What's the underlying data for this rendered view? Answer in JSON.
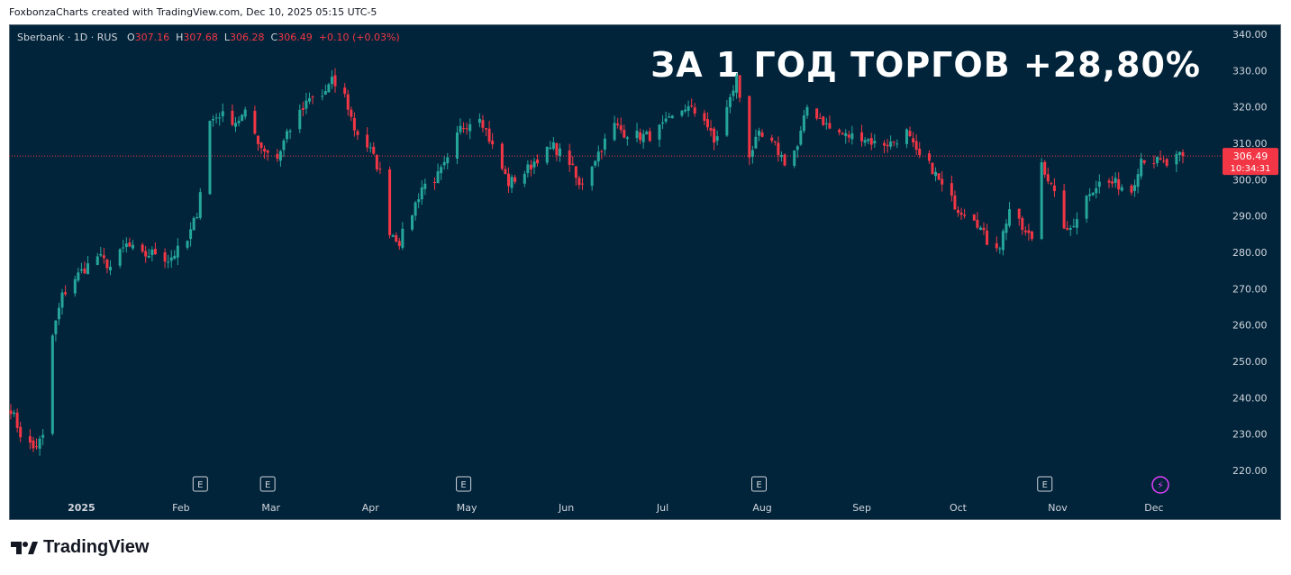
{
  "header": {
    "credit": "FoxbonzaCharts created with TradingView.com, Dec 10, 2025 05:15 UTC-5"
  },
  "legend": {
    "symbol": "Sberbank · 1D · RUS",
    "o_label": "O",
    "o_value": "307.16",
    "h_label": "H",
    "h_value": "307.68",
    "l_label": "L",
    "l_value": "306.28",
    "c_label": "C",
    "c_value": "306.49",
    "change": "+0.10 (+0.03%)"
  },
  "headline": "ЗА 1 ГОД ТОРГОВ +28,80%",
  "price_label": {
    "price": "306.49",
    "countdown": "10:34:31"
  },
  "footer": {
    "brand": "TradingView"
  },
  "colors": {
    "up": "#26a69a",
    "down": "#f23645",
    "background": "#01243a",
    "axis_text": "#d1d4dc"
  },
  "chart_data": {
    "type": "candlestick",
    "y_ticks": [
      "340.00",
      "330.00",
      "320.00",
      "310.00",
      "300.00",
      "290.00",
      "280.00",
      "270.00",
      "260.00",
      "250.00",
      "240.00",
      "230.00",
      "220.00"
    ],
    "ylim": [
      215,
      342
    ],
    "x_ticks": [
      "2025",
      "Feb",
      "Mar",
      "Apr",
      "May",
      "Jun",
      "Jul",
      "Aug",
      "Sep",
      "Oct",
      "Nov",
      "Dec"
    ],
    "last_price": 306.49,
    "event_markers": [
      {
        "label": "E",
        "month": "Feb"
      },
      {
        "label": "E",
        "month": "Mar"
      },
      {
        "label": "E",
        "month": "May"
      },
      {
        "label": "E",
        "month": "Aug"
      },
      {
        "label": "E",
        "month": "Nov"
      },
      {
        "label": "⚡",
        "month": "Dec"
      }
    ],
    "close_path": [
      [
        "2024-12-10",
        237
      ],
      [
        "2024-12-13",
        230
      ],
      [
        "2024-12-17",
        226
      ],
      [
        "2024-12-20",
        229
      ],
      [
        "2024-12-23",
        257
      ],
      [
        "2024-12-26",
        268
      ],
      [
        "2024-12-30",
        273
      ],
      [
        "2025-01-06",
        279
      ],
      [
        "2025-01-10",
        276
      ],
      [
        "2025-01-15",
        282
      ],
      [
        "2025-01-20",
        279
      ],
      [
        "2025-01-24",
        280
      ],
      [
        "2025-01-28",
        278
      ],
      [
        "2025-02-03",
        283
      ],
      [
        "2025-02-06",
        291
      ],
      [
        "2025-02-10",
        316
      ],
      [
        "2025-02-13",
        318
      ],
      [
        "2025-02-18",
        316
      ],
      [
        "2025-02-21",
        318
      ],
      [
        "2025-02-26",
        309
      ],
      [
        "2025-03-03",
        306
      ],
      [
        "2025-03-06",
        313
      ],
      [
        "2025-03-10",
        318
      ],
      [
        "2025-03-13",
        322
      ],
      [
        "2025-03-17",
        323
      ],
      [
        "2025-03-20",
        327
      ],
      [
        "2025-03-24",
        323
      ],
      [
        "2025-03-27",
        314
      ],
      [
        "2025-04-01",
        308
      ],
      [
        "2025-04-04",
        302
      ],
      [
        "2025-04-07",
        286
      ],
      [
        "2025-04-10",
        283
      ],
      [
        "2025-04-14",
        291
      ],
      [
        "2025-04-17",
        298
      ],
      [
        "2025-04-22",
        301
      ],
      [
        "2025-04-25",
        305
      ],
      [
        "2025-04-29",
        314
      ],
      [
        "2025-05-05",
        318
      ],
      [
        "2025-05-09",
        309
      ],
      [
        "2025-05-14",
        299
      ],
      [
        "2025-05-19",
        302
      ],
      [
        "2025-05-23",
        306
      ],
      [
        "2025-05-28",
        309
      ],
      [
        "2025-06-02",
        305
      ],
      [
        "2025-06-05",
        298
      ],
      [
        "2025-06-10",
        306
      ],
      [
        "2025-06-16",
        315
      ],
      [
        "2025-06-19",
        313
      ],
      [
        "2025-06-24",
        312
      ],
      [
        "2025-06-27",
        312
      ],
      [
        "2025-07-03",
        316
      ],
      [
        "2025-07-08",
        320
      ],
      [
        "2025-07-14",
        317
      ],
      [
        "2025-07-17",
        310
      ],
      [
        "2025-07-22",
        322
      ],
      [
        "2025-07-24",
        328
      ],
      [
        "2025-07-28",
        307
      ],
      [
        "2025-07-31",
        312
      ],
      [
        "2025-08-05",
        309
      ],
      [
        "2025-08-08",
        305
      ],
      [
        "2025-08-12",
        309
      ],
      [
        "2025-08-15",
        320
      ],
      [
        "2025-08-19",
        317
      ],
      [
        "2025-08-22",
        314
      ],
      [
        "2025-08-27",
        312
      ],
      [
        "2025-09-01",
        312
      ],
      [
        "2025-09-05",
        310
      ],
      [
        "2025-09-10",
        310
      ],
      [
        "2025-09-15",
        313
      ],
      [
        "2025-09-18",
        307
      ],
      [
        "2025-09-23",
        303
      ],
      [
        "2025-09-26",
        298
      ],
      [
        "2025-10-01",
        292
      ],
      [
        "2025-10-06",
        290
      ],
      [
        "2025-10-10",
        283
      ],
      [
        "2025-10-14",
        282
      ],
      [
        "2025-10-17",
        292
      ],
      [
        "2025-10-22",
        285
      ],
      [
        "2025-10-24",
        284
      ],
      [
        "2025-10-27",
        305
      ],
      [
        "2025-10-30",
        298
      ],
      [
        "2025-11-04",
        285
      ],
      [
        "2025-11-07",
        290
      ],
      [
        "2025-11-11",
        297
      ],
      [
        "2025-11-14",
        299
      ],
      [
        "2025-11-19",
        299
      ],
      [
        "2025-11-24",
        297
      ],
      [
        "2025-11-27",
        306
      ],
      [
        "2025-12-02",
        305
      ],
      [
        "2025-12-05",
        304
      ],
      [
        "2025-12-08",
        306
      ],
      [
        "2025-12-10",
        306.49
      ]
    ]
  }
}
